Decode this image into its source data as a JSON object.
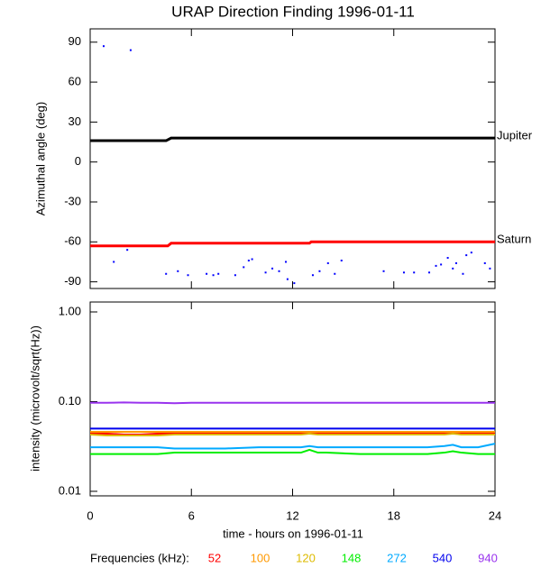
{
  "chart_data": [
    {
      "type": "line",
      "title": "URAP Direction Finding  1996-01-11",
      "ylabel": "Azimuthal angle (deg)",
      "xlim": [
        0,
        24
      ],
      "xticks": [
        0,
        6,
        12,
        18,
        24
      ],
      "ylim": [
        -95,
        100
      ],
      "yticks": [
        -90,
        -60,
        -30,
        0,
        30,
        60,
        90
      ],
      "series": [
        {
          "name": "Jupiter",
          "color": "#000000",
          "x": [
            0,
            4.5,
            4.8,
            24
          ],
          "values": [
            16,
            16,
            18,
            18
          ]
        },
        {
          "name": "Saturn",
          "color": "#ff0000",
          "x": [
            0,
            4.6,
            4.8,
            13,
            13.1,
            24
          ],
          "values": [
            -63,
            -63,
            -61,
            -61,
            -60,
            -60
          ]
        }
      ],
      "scatter": {
        "color": "#0000ff",
        "x": [
          0.8,
          2.4,
          1.4,
          2.2,
          4.5,
          5.2,
          5.8,
          6.9,
          7.3,
          7.6,
          8.6,
          9.1,
          9.4,
          9.6,
          10.4,
          10.8,
          11.2,
          11.6,
          11.7,
          12.1,
          13.2,
          13.6,
          14.1,
          14.5,
          14.9,
          17.4,
          18.6,
          19.2,
          20.1,
          20.5,
          20.8,
          21.2,
          21.5,
          21.7,
          22.1,
          22.3,
          22.6,
          23.4,
          23.7
        ],
        "values": [
          87,
          84,
          -75,
          -66,
          -84,
          -82,
          -85,
          -84,
          -85,
          -84,
          -85,
          -79,
          -74,
          -73,
          -83,
          -80,
          -82,
          -75,
          -88,
          -91,
          -85,
          -82,
          -76,
          -84,
          -74,
          -82,
          -83,
          -83,
          -83,
          -78,
          -77,
          -72,
          -80,
          -76,
          -84,
          -70,
          -68,
          -76,
          -80
        ]
      }
    },
    {
      "type": "line",
      "log": true,
      "ylabel": "intensity (microvolt/sqrt(Hz))",
      "xlabel": "time - hours on 1996-01-11",
      "xlim": [
        0,
        24
      ],
      "xticks": [
        0,
        6,
        12,
        18,
        24
      ],
      "ylim": [
        0.0089,
        1.29
      ],
      "yticks": [
        {
          "value": 0.01,
          "label": "0.01"
        },
        {
          "value": 0.1,
          "label": "0.10"
        },
        {
          "value": 1,
          "label": "1.00"
        }
      ],
      "legend_title": "Frequencies (kHz):",
      "x": [
        0,
        1,
        2,
        3,
        4,
        5,
        6,
        8,
        10,
        12,
        12.5,
        13,
        13.5,
        14,
        16,
        18,
        20,
        21,
        21.5,
        22,
        23,
        24
      ],
      "series": [
        {
          "name": "52",
          "color": "#ff0000",
          "values": [
            0.044,
            0.044,
            0.043,
            0.043,
            0.044,
            0.044,
            0.044,
            0.044,
            0.044,
            0.044,
            0.044,
            0.045,
            0.044,
            0.044,
            0.044,
            0.044,
            0.044,
            0.044,
            0.045,
            0.044,
            0.044,
            0.044
          ]
        },
        {
          "name": "100",
          "color": "#ff9900",
          "values": [
            0.046,
            0.046,
            0.046,
            0.046,
            0.046,
            0.046,
            0.046,
            0.046,
            0.046,
            0.046,
            0.046,
            0.046,
            0.046,
            0.046,
            0.046,
            0.046,
            0.046,
            0.046,
            0.046,
            0.046,
            0.046,
            0.046
          ]
        },
        {
          "name": "120",
          "color": "#ddbb00",
          "values": [
            0.043,
            0.042,
            0.042,
            0.042,
            0.042,
            0.043,
            0.043,
            0.043,
            0.043,
            0.043,
            0.043,
            0.044,
            0.043,
            0.043,
            0.043,
            0.043,
            0.043,
            0.043,
            0.044,
            0.043,
            0.043,
            0.043
          ]
        },
        {
          "name": "148",
          "color": "#00ee00",
          "values": [
            0.026,
            0.026,
            0.026,
            0.026,
            0.026,
            0.027,
            0.027,
            0.027,
            0.027,
            0.027,
            0.027,
            0.029,
            0.027,
            0.027,
            0.026,
            0.026,
            0.026,
            0.027,
            0.028,
            0.027,
            0.026,
            0.026
          ]
        },
        {
          "name": "272",
          "color": "#00aaff",
          "values": [
            0.031,
            0.031,
            0.031,
            0.031,
            0.031,
            0.03,
            0.03,
            0.03,
            0.031,
            0.031,
            0.031,
            0.032,
            0.031,
            0.031,
            0.031,
            0.031,
            0.031,
            0.032,
            0.033,
            0.031,
            0.031,
            0.034
          ]
        },
        {
          "name": "540",
          "color": "#0000ee",
          "values": [
            0.05,
            0.05,
            0.05,
            0.05,
            0.05,
            0.05,
            0.05,
            0.05,
            0.05,
            0.05,
            0.05,
            0.05,
            0.05,
            0.05,
            0.05,
            0.05,
            0.05,
            0.05,
            0.05,
            0.05,
            0.05,
            0.05
          ]
        },
        {
          "name": "940",
          "color": "#9933ee",
          "values": [
            0.097,
            0.097,
            0.098,
            0.097,
            0.097,
            0.096,
            0.097,
            0.097,
            0.097,
            0.097,
            0.097,
            0.097,
            0.097,
            0.097,
            0.097,
            0.097,
            0.097,
            0.097,
            0.097,
            0.097,
            0.097,
            0.097
          ]
        }
      ]
    }
  ]
}
